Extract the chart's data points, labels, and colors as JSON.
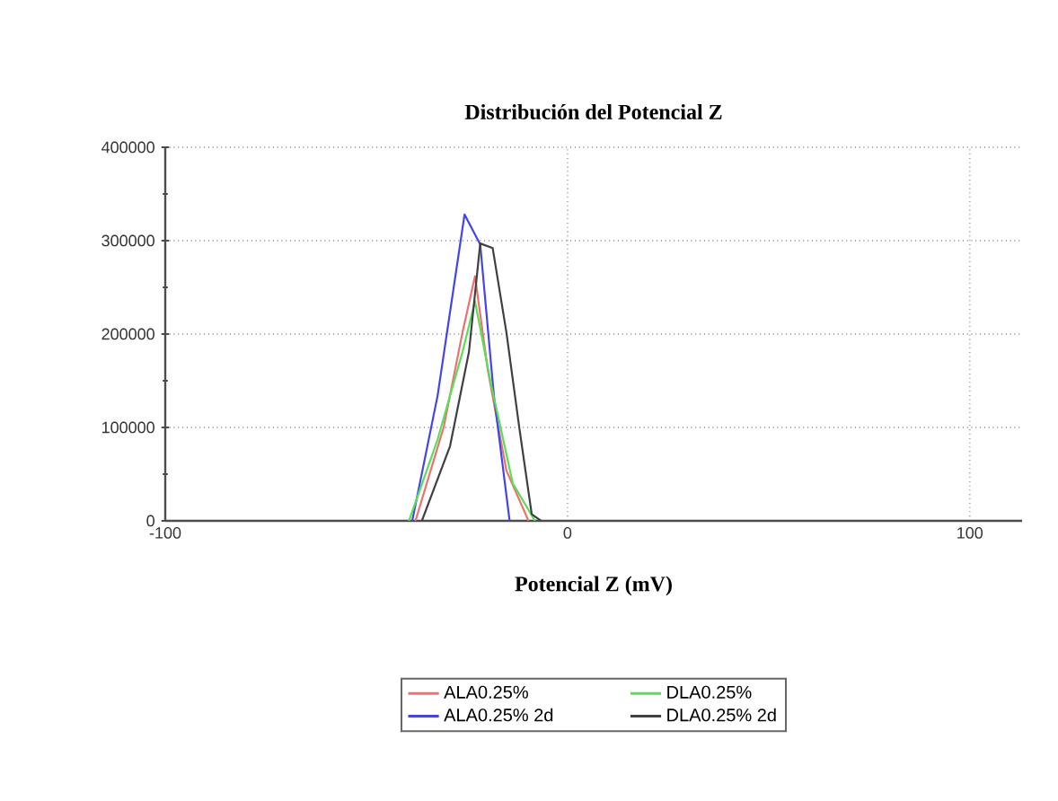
{
  "chart_data": {
    "type": "line",
    "title": "Distribución del Potencial Z",
    "xlabel": "Potencial Z (mV)",
    "xlim": [
      -100,
      113
    ],
    "xticks": [
      -100,
      0,
      100
    ],
    "ylim": [
      0,
      400000
    ],
    "yticks": [
      0,
      100000,
      200000,
      300000,
      400000
    ],
    "grid": true,
    "legend": "bottom",
    "marker": "none",
    "line_style": "solid",
    "series": [
      {
        "name": "ALA0.25%",
        "color": "#f07070",
        "x": [
          -37.8,
          -30.8,
          -26.1,
          -23,
          -19.8,
          -15.2,
          -9.7
        ],
        "values": [
          0,
          100000,
          202000,
          262000,
          161000,
          54000,
          0
        ]
      },
      {
        "name": "ALA0.25% 2d",
        "color": "#4444ee",
        "x": [
          -38.6,
          -32.3,
          -25.6,
          -21.7,
          -18.3,
          -14.4
        ],
        "values": [
          0,
          134000,
          328000,
          296000,
          134000,
          0
        ]
      },
      {
        "name": "DLA0.25%",
        "color": "#55e055",
        "x": [
          -39.4,
          -32.3,
          -26.1,
          -23,
          -19.1,
          -13.6,
          -8.1
        ],
        "values": [
          0,
          87000,
          181000,
          235000,
          148000,
          40000,
          0
        ]
      },
      {
        "name": "DLA0.25% 2d",
        "color": "#404040",
        "x": [
          -36.2,
          -29.2,
          -24.5,
          -21.7,
          -18.6,
          -15.2,
          -12,
          -8.9,
          -6.6
        ],
        "values": [
          0,
          80000,
          181000,
          297000,
          292000,
          202000,
          100000,
          7000,
          0
        ]
      }
    ]
  }
}
